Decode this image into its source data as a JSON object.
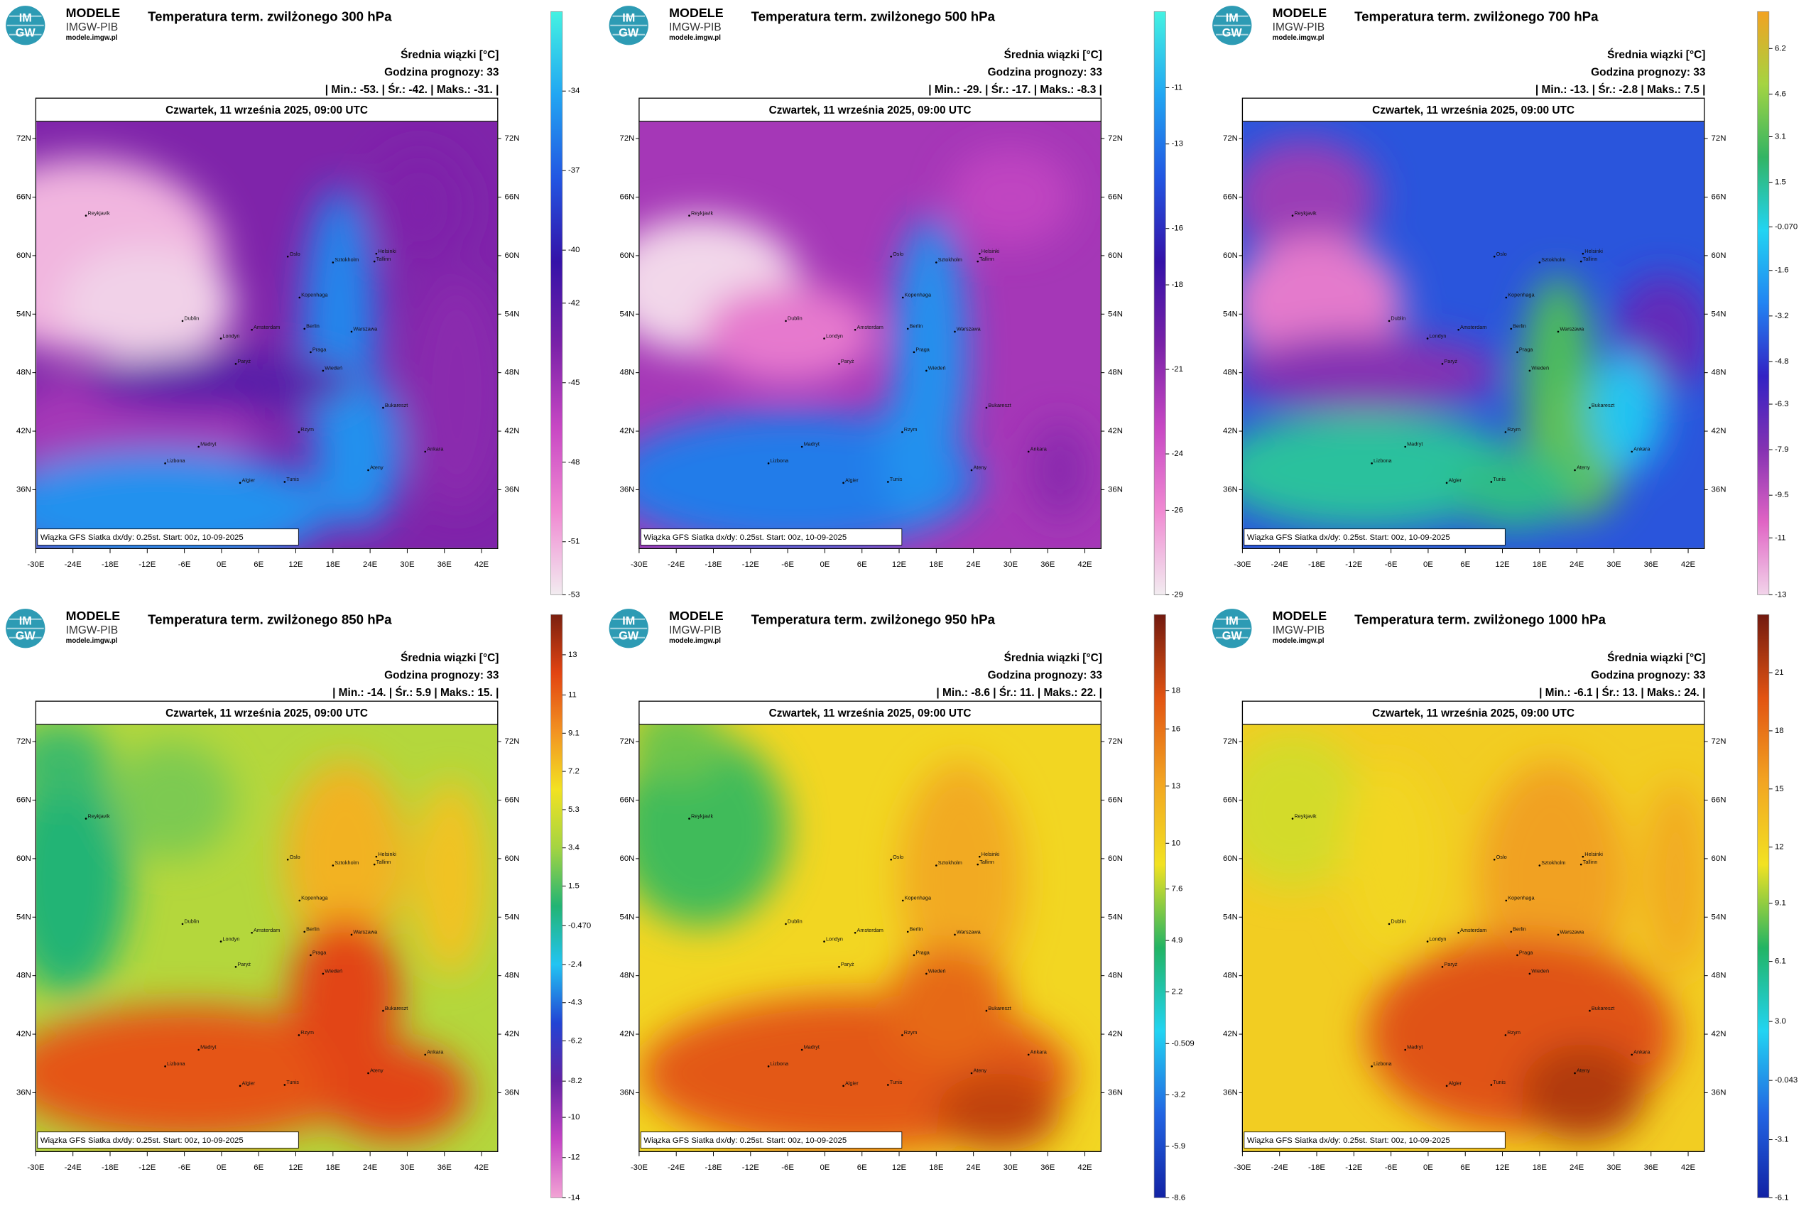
{
  "shared": {
    "brand": "MODELE",
    "org": "IMGW-PIB",
    "site": "modele.imgw.pl",
    "logo_top": "IM",
    "logo_bottom": "GW",
    "mean_label": "Średnia wiązki [°C]",
    "forecast_hour": "Godzina prognozy: 33",
    "date": "Czwartek, 11 września 2025, 09:00 UTC",
    "footer": "Wiązka GFS Siatka dx/dy: 0.25st. Start: 00z, 10-09-2025",
    "lat_ticks": [
      {
        "value": 72,
        "label": "72N"
      },
      {
        "value": 66,
        "label": "66N"
      },
      {
        "value": 60,
        "label": "60N"
      },
      {
        "value": 54,
        "label": "54N"
      },
      {
        "value": 48,
        "label": "48N"
      },
      {
        "value": 42,
        "label": "42N"
      },
      {
        "value": 36,
        "label": "36N"
      }
    ],
    "lon_ticks": [
      {
        "value": -30,
        "label": "-30E"
      },
      {
        "value": -24,
        "label": "-24E"
      },
      {
        "value": -18,
        "label": "-18E"
      },
      {
        "value": -12,
        "label": "-12E"
      },
      {
        "value": -6,
        "label": "-6E"
      },
      {
        "value": 0,
        "label": "0E"
      },
      {
        "value": 6,
        "label": "6E"
      },
      {
        "value": 12,
        "label": "12E"
      },
      {
        "value": 18,
        "label": "18E"
      },
      {
        "value": 24,
        "label": "24E"
      },
      {
        "value": 30,
        "label": "30E"
      },
      {
        "value": 36,
        "label": "36E"
      },
      {
        "value": 42,
        "label": "42E"
      }
    ],
    "cities": [
      "Reykjavik",
      "Oslo",
      "Sztokholm",
      "Helsinki",
      "Tallinn",
      "Kopenhaga",
      "Dublin",
      "Londyn",
      "Amsterdam",
      "Paryż",
      "Berlin",
      "Warszawa",
      "Praga",
      "Wiedeń",
      "Bukareszt",
      "Madryt",
      "Lizbona",
      "Rzym",
      "Ateny",
      "Ankara",
      "Algier",
      "Tunis"
    ]
  },
  "panels": [
    {
      "title": "Temperatura term. zwilżonego 300 hPa",
      "stats": "| Min.:  -53.  | Śr.:  -42.  | Maks.:  -31.  |",
      "colorbar": {
        "lim": [
          -53,
          -31
        ],
        "ticks": [
          -34,
          -37,
          -40,
          -42,
          -45,
          -48,
          -51,
          -53
        ],
        "colors": [
          "#f2ecf0",
          "#f08ad2",
          "#c848c4",
          "#7a22a8",
          "#3412a8",
          "#2256e2",
          "#22a6f2",
          "#44f2e2"
        ]
      }
    },
    {
      "title": "Temperatura term. zwilżonego 500 hPa",
      "stats": "| Min.:  -29.  | Śr.:  -17.  | Maks.:  -8.3  |",
      "colorbar": {
        "lim": [
          -29,
          -8.3
        ],
        "ticks": [
          -11,
          -13,
          -16,
          -18,
          -21,
          -24,
          -26,
          -29
        ],
        "colors": [
          "#f2ecf0",
          "#f08ad2",
          "#c848c4",
          "#7a22a8",
          "#3412a8",
          "#2256e2",
          "#22a6f2",
          "#44f2e2"
        ]
      }
    },
    {
      "title": "Temperatura term. zwilżonego 700 hPa",
      "stats": "| Min.:  -13.  | Śr.:  -2.8  | Maks.:  7.5  |",
      "colorbar": {
        "lim": [
          -13,
          7.5
        ],
        "ticks": [
          6.2,
          4.6,
          3.1,
          1.5,
          {
            "value": -0.07,
            "label": "-0.070"
          },
          -1.6,
          -3.2,
          -4.8,
          -6.3,
          -7.9,
          -9.5,
          -11,
          -13
        ],
        "colors": [
          "#f2d4ea",
          "#e064c4",
          "#8432b2",
          "#3222c4",
          "#2284f2",
          "#22d4f2",
          "#32b464",
          "#a4d442",
          "#f2a222"
        ]
      }
    },
    {
      "title": "Temperatura term. zwilżonego 850 hPa",
      "stats": "| Min.:  -14.  | Śr.:  5.9  | Maks.:  15.  |",
      "colorbar": {
        "lim": [
          -14,
          15
        ],
        "ticks": [
          13,
          11,
          9.1,
          7.2,
          5.3,
          3.4,
          1.5,
          {
            "value": -0.47,
            "label": "-0.470"
          },
          -2.4,
          -4.3,
          -6.2,
          -8.2,
          -10,
          -12,
          -14
        ],
        "colors": [
          "#f2a4d4",
          "#c444c4",
          "#6422a4",
          "#2244d4",
          "#22c4f2",
          "#22b474",
          "#a4d442",
          "#f2e222",
          "#f29222",
          "#e24412",
          "#7a2010"
        ]
      }
    },
    {
      "title": "Temperatura term. zwilżonego 950 hPa",
      "stats": "| Min.:  -8.6  | Śr.:  11.  | Maks.:  22.  |",
      "colorbar": {
        "lim": [
          -8.6,
          22
        ],
        "ticks": [
          18,
          16,
          13,
          10,
          7.6,
          4.9,
          2.2,
          -0.509,
          -3.2,
          -5.9,
          -8.6
        ],
        "colors": [
          "#1222a4",
          "#2264e2",
          "#22d4f2",
          "#22b464",
          "#f2e222",
          "#f2a422",
          "#e25412",
          "#721a10"
        ]
      }
    },
    {
      "title": "Temperatura term. zwilżonego 1000 hPa",
      "stats": "| Min.:  -6.1  | Śr.:  13.  | Maks.:  24.  |",
      "colorbar": {
        "lim": [
          -6.1,
          24
        ],
        "ticks": [
          21,
          18,
          15,
          12,
          9.1,
          6.1,
          {
            "value": 3,
            "label": "3.0"
          },
          -0.043,
          -3.1,
          -6.1
        ],
        "colors": [
          "#1222a4",
          "#2264e2",
          "#22d4f2",
          "#22b464",
          "#f2e222",
          "#f2a422",
          "#e25412",
          "#721a10"
        ]
      }
    }
  ]
}
